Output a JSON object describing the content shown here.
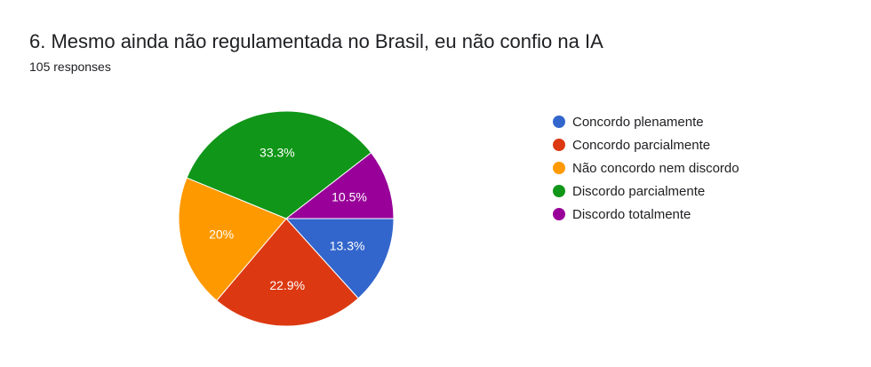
{
  "card": {
    "title": "6. Mesmo ainda não regulamentada no Brasil, eu não confio na IA",
    "responses": "105 responses"
  },
  "chart_data": {
    "type": "pie",
    "title": "6. Mesmo ainda não regulamentada no Brasil, eu não confio na IA",
    "legend_position": "right",
    "slices": [
      {
        "label": "Concordo plenamente",
        "value": 13.3,
        "display": "13.3%",
        "color": "#3366cc"
      },
      {
        "label": "Concordo parcialmente",
        "value": 22.9,
        "display": "22.9%",
        "color": "#dc3912"
      },
      {
        "label": "Não concordo nem discordo",
        "value": 20.0,
        "display": "20%",
        "color": "#ff9900"
      },
      {
        "label": "Discordo parcialmente",
        "value": 33.3,
        "display": "33.3%",
        "color": "#109618"
      },
      {
        "label": "Discordo totalmente",
        "value": 10.5,
        "display": "10.5%",
        "color": "#990099"
      }
    ]
  }
}
